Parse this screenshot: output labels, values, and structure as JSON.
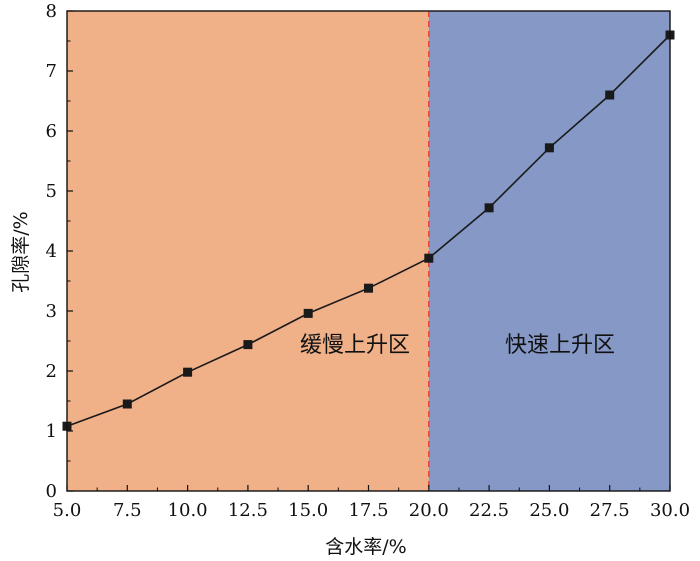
{
  "chart_data": {
    "type": "line",
    "title": "",
    "xlabel": "含水率/%",
    "ylabel": "孔隙率/%",
    "xlim": [
      5.0,
      30.0
    ],
    "ylim": [
      0,
      8
    ],
    "x_ticks": [
      "5.0",
      "7.5",
      "10.0",
      "12.5",
      "15.0",
      "17.5",
      "20.0",
      "22.5",
      "25.0",
      "27.5",
      "30.0"
    ],
    "y_ticks": [
      "0",
      "1",
      "2",
      "3",
      "4",
      "5",
      "6",
      "7",
      "8"
    ],
    "grid": false,
    "legend": "none",
    "series": [
      {
        "x": [
          5.0,
          7.5,
          10.0,
          12.5,
          15.0,
          17.5,
          20.0,
          22.5,
          25.0,
          27.5,
          30.0
        ],
        "y": [
          1.08,
          1.45,
          1.98,
          2.44,
          2.96,
          3.38,
          3.88,
          4.72,
          5.72,
          6.6,
          7.6
        ],
        "color": "#1a1a1a",
        "marker": "square"
      }
    ],
    "regions": [
      {
        "label": "缓慢上升区",
        "x_start": 5.0,
        "x_end": 20.0,
        "color": "#f0b088"
      },
      {
        "label": "快速上升区",
        "x_start": 20.0,
        "x_end": 30.0,
        "color": "#8598c6"
      }
    ],
    "divider": {
      "x": 20.0,
      "color": "#e8473a",
      "style": "dashed"
    }
  }
}
